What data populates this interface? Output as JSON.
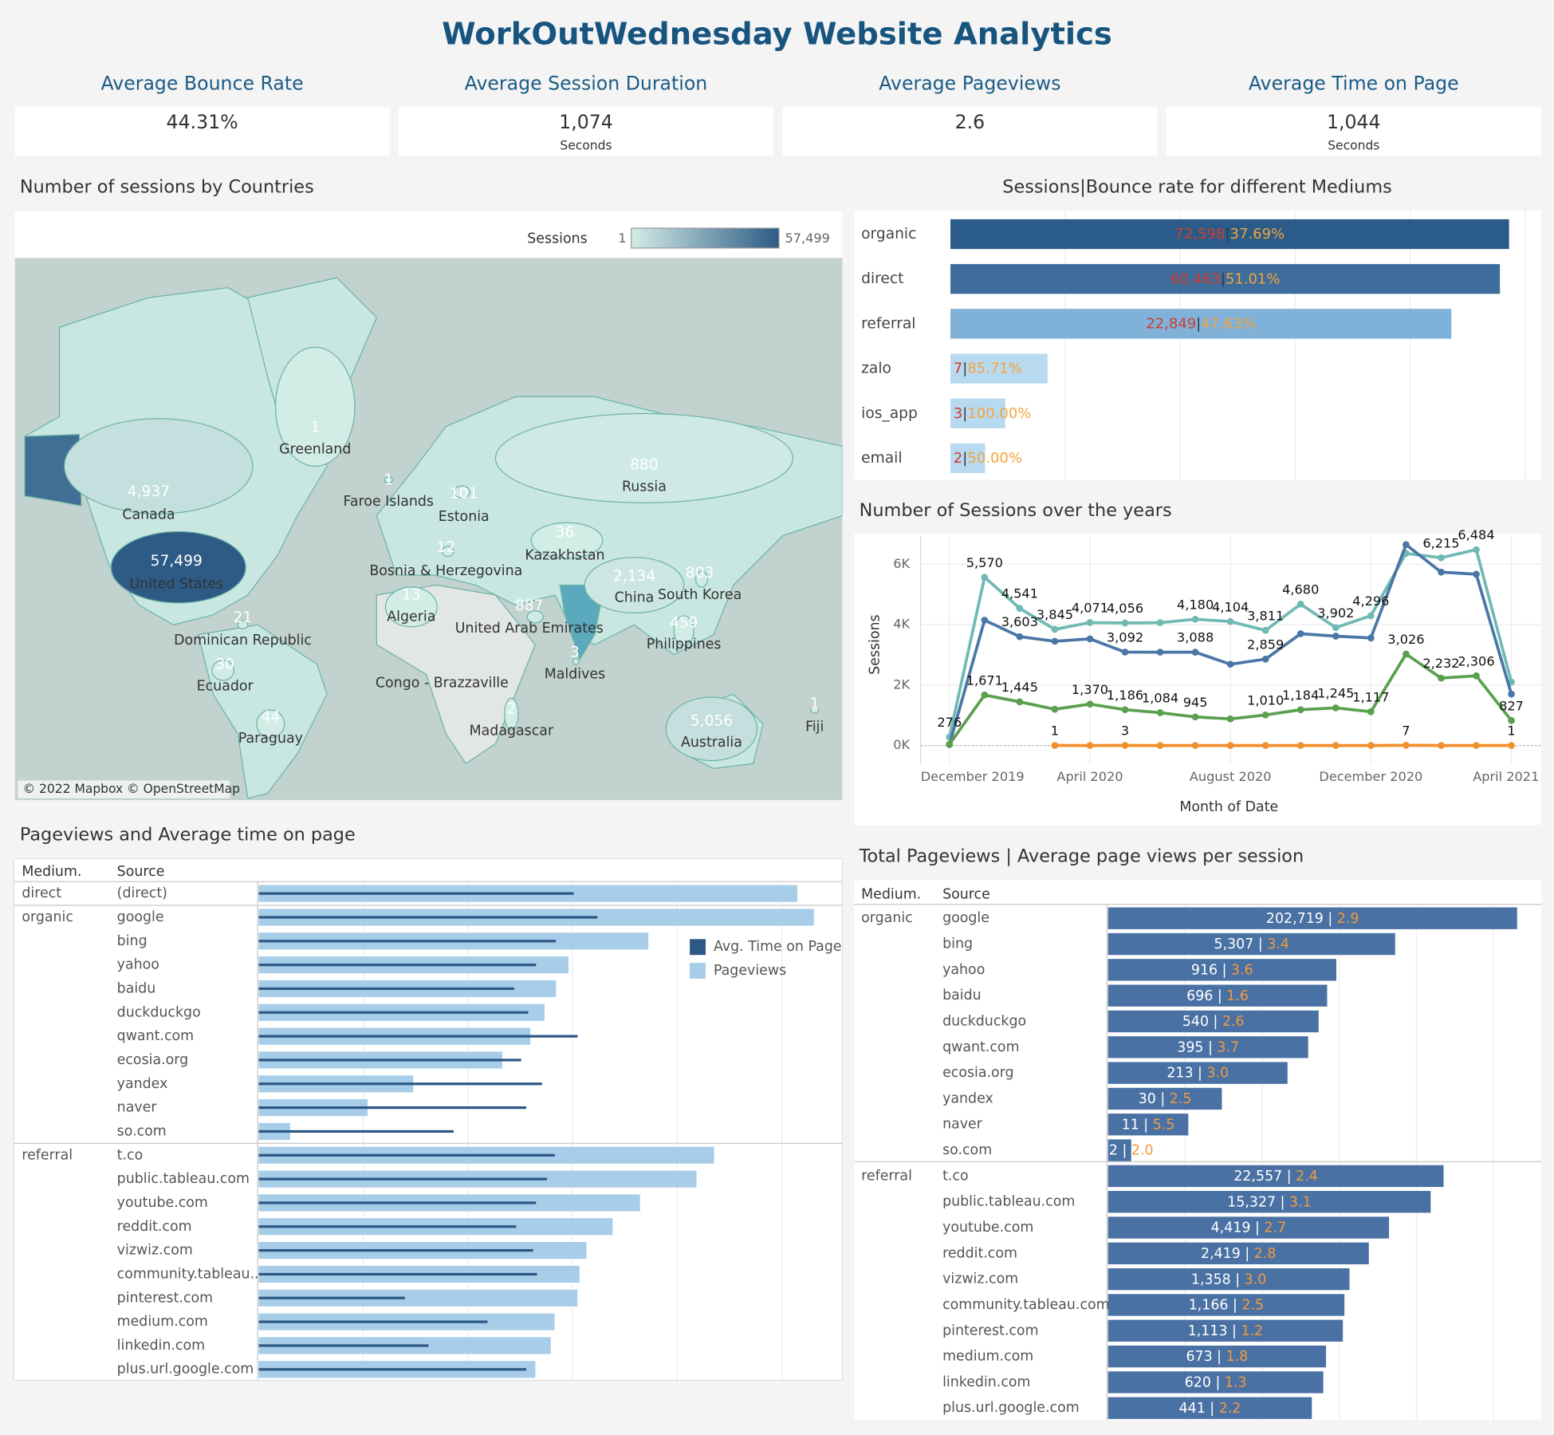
{
  "title": "WorkOutWednesday Website Analytics",
  "kpis": [
    {
      "label": "Average Bounce Rate",
      "value": "44.31%"
    },
    {
      "label": "Average Session Duration",
      "value": "1,074",
      "unit": "Seconds"
    },
    {
      "label": "Average Pageviews",
      "value": "2.6"
    },
    {
      "label": "Average Time on Page",
      "value": "1,044",
      "unit": "Seconds"
    }
  ],
  "chart_data": [
    {
      "type": "map",
      "title": "Number of  sessions by Countries",
      "legend_title": "Sessions",
      "legend_range": [
        1,
        {
          "value": 57499,
          "label": "57,499"
        }
      ],
      "colors": [
        "#d2ece6",
        "#2e5b85"
      ],
      "categories": [
        "Greenland",
        "Canada",
        "United States",
        "Faroe Islands",
        "Estonia",
        "Russia",
        "Kazakhstan",
        "Bosnia & Herzegovina",
        "Algeria",
        "United Arab Emirates",
        "China",
        "South Korea",
        "Philippines",
        "Maldives",
        "Dominican Republic",
        "Ecuador",
        "Paraguay",
        "Congo - Brazzaville",
        "Madagascar",
        "Australia",
        "Fiji"
      ],
      "values": [
        1,
        4937,
        57499,
        1,
        101,
        880,
        36,
        12,
        13,
        887,
        2134,
        803,
        459,
        3,
        21,
        30,
        44,
        null,
        2,
        5056,
        1
      ],
      "value_labels": [
        "1",
        "4,937",
        "57,499",
        "1",
        "101",
        "880",
        "36",
        "12",
        "13",
        "887",
        "2,134",
        "803",
        "459",
        "3",
        "21",
        "30",
        "44",
        null,
        "2",
        "5,056",
        "1"
      ],
      "attribution": "© 2022 Mapbox © OpenStreetMap"
    },
    {
      "type": "bar",
      "orientation": "horizontal",
      "title": "Sessions|Bounce rate for different Mediums",
      "categories": [
        "organic",
        "direct",
        "referral",
        "zalo",
        "ios_app",
        "email"
      ],
      "values": [
        72598,
        60463,
        22849,
        7,
        3,
        2
      ],
      "value_labels": [
        "72,598",
        "60,463",
        "22,849",
        "7",
        "3",
        "2"
      ],
      "bounce_rates": [
        37.69,
        51.01,
        47.63,
        85.71,
        100.0,
        50.0
      ],
      "bounce_rate_labels": [
        "37.69%",
        "51.01%",
        "47.63%",
        "85.71%",
        "100.00%",
        "50.00%"
      ],
      "separator": "|",
      "colors": [
        "#2b5b89",
        "#3e6c9b",
        "#80b1d8",
        "#b7daf0",
        "#b7daf0",
        "#b7daf0"
      ],
      "log": true,
      "xlim": [
        1,
        138000
      ],
      "grid": true
    },
    {
      "type": "line",
      "title": "Number of Sessions over the years",
      "xlabel": "Month of Date",
      "ylabel": "Sessions",
      "categories": [
        "December 2019",
        null,
        null,
        null,
        "April 2020",
        null,
        null,
        null,
        "August 2020",
        null,
        null,
        null,
        "December 2020",
        null,
        null,
        null,
        "April 2021"
      ],
      "series": [
        {
          "color": "#70b9b3",
          "values": [
            276,
            5570,
            4541,
            3845,
            4071,
            4056,
            4065,
            4180,
            4104,
            3811,
            4680,
            3902,
            4296,
            6360,
            6215,
            6484,
            2100
          ],
          "value_labels": [
            "276",
            "5,570",
            "4,541",
            "3,845",
            "4,071",
            "4,056",
            null,
            "4,180",
            "4,104",
            "3,811",
            "4,680",
            "3,902",
            "4,296",
            null,
            "6,215",
            "6,484",
            null
          ]
        },
        {
          "color": "#4a76a6",
          "values": [
            30,
            4150,
            3603,
            3450,
            3530,
            3092,
            3090,
            3088,
            2690,
            2859,
            3700,
            3620,
            3560,
            6650,
            5740,
            5670,
            1700
          ],
          "value_labels": [
            null,
            null,
            "3,603",
            null,
            null,
            "3,092",
            null,
            "3,088",
            null,
            "2,859",
            null,
            null,
            null,
            null,
            null,
            null,
            null
          ]
        },
        {
          "color": "#5aa04f",
          "values": [
            40,
            1671,
            1445,
            1200,
            1370,
            1186,
            1084,
            945,
            880,
            1010,
            1184,
            1245,
            1117,
            3026,
            2232,
            2306,
            827
          ],
          "value_labels": [
            null,
            "1,671",
            "1,445",
            null,
            "1,370",
            "1,186",
            "1,084",
            "945",
            null,
            "1,010",
            "1,184",
            "1,245",
            "1,117",
            "3,026",
            "2,232",
            "2,306",
            "827"
          ]
        },
        {
          "color": "#f28e2b",
          "values": [
            null,
            null,
            null,
            1,
            0,
            3,
            0,
            0,
            0,
            0,
            0,
            0,
            0,
            7,
            0,
            0,
            1
          ],
          "value_labels": [
            null,
            null,
            null,
            "1",
            null,
            "3",
            null,
            null,
            null,
            null,
            null,
            null,
            null,
            "7",
            null,
            null,
            "1"
          ]
        }
      ],
      "ylim": [
        -600,
        6950
      ],
      "yticks": [
        {
          "value": 0,
          "label": "0K"
        },
        {
          "value": 2000,
          "label": "2K"
        },
        {
          "value": 4000,
          "label": "4K"
        },
        {
          "value": 6000,
          "label": "6K"
        }
      ],
      "grid": true
    },
    {
      "type": "bar",
      "orientation": "horizontal",
      "title": "Pageviews and Average time on page",
      "headers": [
        "Medium.",
        "Source"
      ],
      "mediums": [
        "direct",
        "organic",
        null,
        null,
        null,
        null,
        null,
        null,
        null,
        null,
        null,
        "referral",
        null,
        null,
        null,
        null,
        null,
        null,
        null,
        null,
        null
      ],
      "categories": [
        "(direct)",
        "google",
        "bing",
        "yahoo",
        "baidu",
        "duckduckgo",
        "qwant.com",
        "ecosia.org",
        "yandex",
        "naver",
        "so.com",
        "t.co",
        "public.tableau.com",
        "youtube.com",
        "reddit.com",
        "vizwiz.com",
        "community.tableau..",
        "pinterest.com",
        "medium.com",
        "linkedin.com",
        "plus.url.google.com"
      ],
      "series": [
        {
          "name": "Avg. Time on Page",
          "color": "#2c5886",
          "mark": "line",
          "values": [
            1026,
            1733,
            693,
            448,
            277,
            377,
            1120,
            323,
            511,
            361,
            73,
            678,
            570,
            448,
            290,
            420,
            458,
            25,
            154,
            42,
            361
          ]
        },
        {
          "name": "Pageviews",
          "color": "#a7cde9",
          "mark": "bar",
          "values": [
            141000,
            202719,
            5307,
            916,
            696,
            540,
            395,
            213,
            30,
            11,
            2,
            22557,
            15327,
            4419,
            2419,
            1358,
            1166,
            1113,
            673,
            620,
            441
          ]
        }
      ],
      "log": true,
      "xlim": [
        1,
        380000
      ],
      "grid": true
    },
    {
      "type": "bar",
      "orientation": "horizontal",
      "title": "Total Pageviews | Average page views per session",
      "headers": [
        "Medium.",
        "Source"
      ],
      "mediums": [
        "organic",
        null,
        null,
        null,
        null,
        null,
        null,
        null,
        null,
        null,
        "referral",
        null,
        null,
        null,
        null,
        null,
        null,
        null,
        null,
        null
      ],
      "categories": [
        "google",
        "bing",
        "yahoo",
        "baidu",
        "duckduckgo",
        "qwant.com",
        "ecosia.org",
        "yandex",
        "naver",
        "so.com",
        "t.co",
        "public.tableau.com",
        "youtube.com",
        "reddit.com",
        "vizwiz.com",
        "community.tableau.com",
        "pinterest.com",
        "medium.com",
        "linkedin.com",
        "plus.url.google.com"
      ],
      "values": [
        202719,
        5307,
        916,
        696,
        540,
        395,
        213,
        30,
        11,
        2,
        22557,
        15327,
        4419,
        2419,
        1358,
        1166,
        1113,
        673,
        620,
        441
      ],
      "value_labels": [
        "202,719",
        "5,307",
        "916",
        "696",
        "540",
        "395",
        "213",
        "30",
        "11",
        "2",
        "22,557",
        "15,327",
        "4,419",
        "2,419",
        "1,358",
        "1,166",
        "1,113",
        "673",
        "620",
        "441"
      ],
      "ratios": [
        2.9,
        3.4,
        3.6,
        1.6,
        2.6,
        3.7,
        3.0,
        2.5,
        5.5,
        2.0,
        2.4,
        3.1,
        2.7,
        2.8,
        3.0,
        2.5,
        1.2,
        1.8,
        1.3,
        2.2
      ],
      "ratio_labels": [
        "2.9",
        "3.4",
        "3.6",
        "1.6",
        "2.6",
        "3.7",
        "3.0",
        "2.5",
        "5.5",
        "2.0",
        "2.4",
        "3.1",
        "2.7",
        "2.8",
        "3.0",
        "2.5",
        "1.2",
        "1.8",
        "1.3",
        "2.2"
      ],
      "separator": " | ",
      "color": "#4a71a4",
      "log": true,
      "xlim": [
        1,
        380000
      ],
      "grid": true
    }
  ]
}
